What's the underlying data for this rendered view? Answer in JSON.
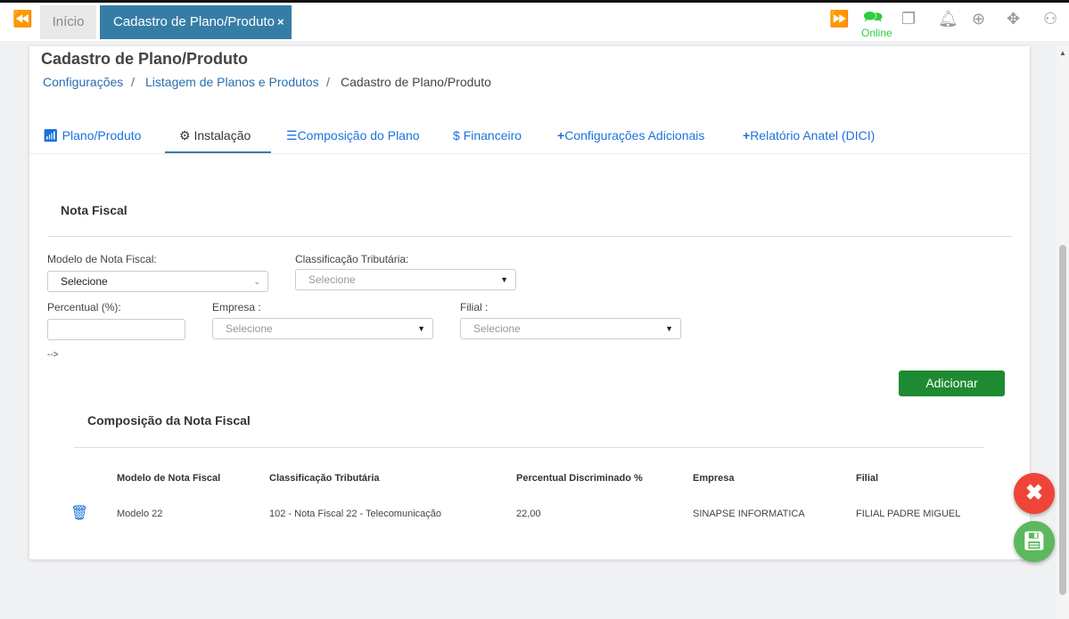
{
  "topbar": {
    "home_tab": "Início",
    "active_tab": "Cadastro de Plano/Produto",
    "close": "×",
    "status": "Online"
  },
  "page": {
    "title": "Cadastro de Plano/Produto",
    "breadcrumb": [
      "Configurações",
      "Listagem de Planos e Produtos",
      "Cadastro de Plano/Produto"
    ],
    "sep": "/"
  },
  "tabs": [
    "Plano/Produto",
    "Instalação",
    "Composição do Plano",
    "Financeiro",
    "Configurações Adicionais",
    "Relatório Anatel (DICI)"
  ],
  "section": {
    "title": "Nota Fiscal",
    "subtitle": "Composição da Nota Fiscal"
  },
  "form": {
    "modelo_label": "Modelo de Nota Fiscal:",
    "modelo_value": "Selecione",
    "classificacao_label": "Classificação Tributária:",
    "classificacao_value": "Selecione",
    "percentual_label": "Percentual (%):",
    "percentual_value": "",
    "empresa_label": "Empresa :",
    "empresa_value": "Selecione",
    "filial_label": "Filial :",
    "filial_value": "Selecione",
    "stray": "-->",
    "add_button": "Adicionar"
  },
  "table": {
    "headers": [
      "Modelo de Nota Fiscal",
      "Classificação Tributária",
      "Percentual Discriminado %",
      "Empresa",
      "Filial"
    ],
    "rows": [
      [
        "Modelo 22",
        "102 - Nota Fiscal 22 - Telecomunicação",
        "22,00",
        "SINAPSE INFORMATICA",
        "FILIAL PADRE MIGUEL"
      ]
    ]
  },
  "colors": {
    "accent": "#367da6",
    "link": "#1a73d9",
    "add": "#1e8a32",
    "cancel": "#f04438",
    "save": "#5cb85c",
    "online": "#2ecc40"
  }
}
